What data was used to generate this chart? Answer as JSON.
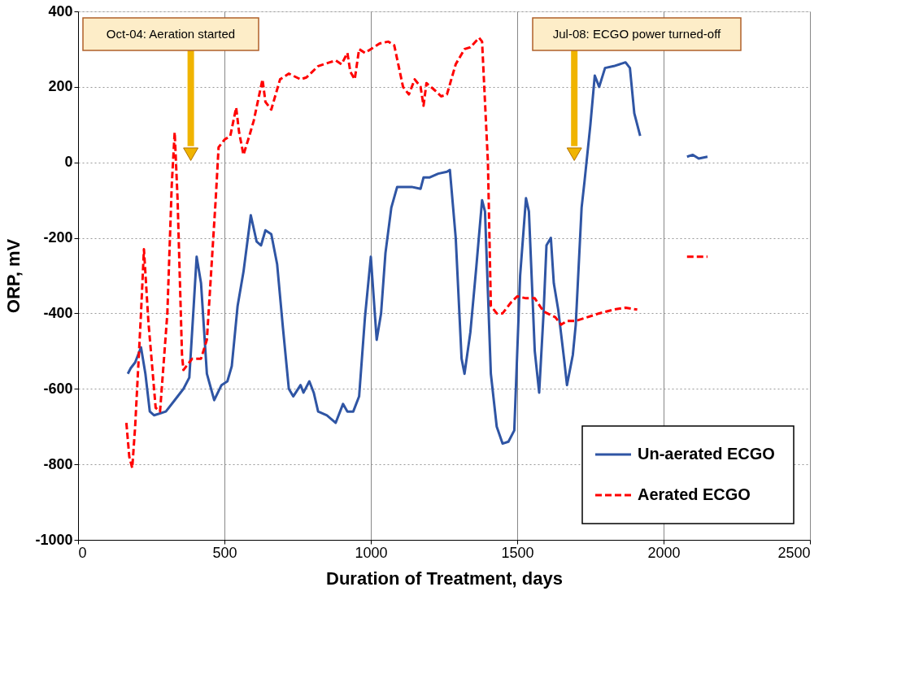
{
  "chart_data": {
    "type": "line",
    "xlabel": "Duration of Treatment, days",
    "ylabel": "ORP, mV",
    "xlim": [
      0,
      2500
    ],
    "xticks": [
      0,
      500,
      1000,
      1500,
      2000,
      2500
    ],
    "ylim": [
      -1000,
      400
    ],
    "yticks": [
      -1000,
      -800,
      -600,
      -400,
      -200,
      0,
      200,
      400
    ],
    "grid": true,
    "legend": "bottom right",
    "ref_lines": [
      {
        "axis": "x",
        "value": 385,
        "label": "Oct-04: Aeration started",
        "color": "#f0b400"
      },
      {
        "axis": "x",
        "value": 1695,
        "label": "Jul-08: ECGO power turned-off",
        "color": "#f0b400"
      }
    ],
    "series": [
      {
        "name": "Un-aerated ECGO",
        "color": "#2f55a4",
        "line_style": "solid",
        "x": [
          170,
          180,
          195,
          215,
          230,
          245,
          260,
          300,
          330,
          360,
          380,
          395,
          405,
          420,
          440,
          465,
          490,
          510,
          525,
          545,
          565,
          590,
          610,
          625,
          640,
          660,
          680,
          700,
          720,
          735,
          760,
          770,
          790,
          805,
          820,
          850,
          880,
          905,
          920,
          940,
          960,
          980,
          1000,
          1020,
          1035,
          1050,
          1070,
          1090,
          1140,
          1170,
          1180,
          1200,
          1230,
          1260,
          1270,
          1290,
          1310,
          1320,
          1340,
          1360,
          1380,
          1390,
          1410,
          1430,
          1450,
          1470,
          1490,
          1510,
          1530,
          1540,
          1560,
          1575,
          1590,
          1600,
          1615,
          1625,
          1640,
          1660,
          1670,
          1690,
          1700,
          1720,
          1730,
          1750,
          1765,
          1780,
          1800,
          1830,
          1870,
          1885,
          1900,
          1920,
          2000,
          2080,
          2100,
          2120,
          2150
        ],
        "values": [
          -560,
          -545,
          -530,
          -490,
          -560,
          -660,
          -670,
          -660,
          -630,
          -600,
          -570,
          -380,
          -250,
          -320,
          -560,
          -630,
          -590,
          -580,
          -540,
          -380,
          -290,
          -140,
          -210,
          -220,
          -180,
          -190,
          -270,
          -440,
          -600,
          -620,
          -590,
          -610,
          -580,
          -610,
          -660,
          -670,
          -690,
          -640,
          -660,
          -660,
          -620,
          -410,
          -250,
          -470,
          -400,
          -240,
          -120,
          -65,
          -65,
          -70,
          -40,
          -40,
          -30,
          -25,
          -20,
          -200,
          -520,
          -560,
          -450,
          -280,
          -100,
          -130,
          -560,
          -700,
          -745,
          -740,
          -710,
          -300,
          -95,
          -130,
          -500,
          -610,
          -400,
          -220,
          -200,
          -320,
          -390,
          -520,
          -590,
          -510,
          -430,
          -120,
          -50,
          100,
          230,
          200,
          250,
          255,
          265,
          250,
          130,
          70,
          null,
          15,
          20,
          10,
          15
        ]
      },
      {
        "name": "Aerated ECGO",
        "color": "#ff0000",
        "line_style": "dashed",
        "x": [
          165,
          175,
          185,
          195,
          215,
          225,
          240,
          265,
          280,
          305,
          320,
          330,
          340,
          355,
          360,
          390,
          420,
          440,
          470,
          480,
          500,
          520,
          540,
          550,
          565,
          585,
          600,
          630,
          640,
          660,
          690,
          720,
          760,
          780,
          820,
          860,
          880,
          900,
          920,
          930,
          945,
          960,
          980,
          1000,
          1030,
          1060,
          1080,
          1110,
          1130,
          1150,
          1170,
          1180,
          1190,
          1220,
          1240,
          1260,
          1290,
          1320,
          1340,
          1370,
          1380,
          1400,
          1410,
          1430,
          1450,
          1480,
          1500,
          1530,
          1560,
          1590,
          1630,
          1650,
          1670,
          1700,
          1740,
          1780,
          1830,
          1870,
          1910,
          2000,
          2080,
          2150
        ],
        "values": [
          -690,
          -780,
          -810,
          -700,
          -400,
          -230,
          -420,
          -650,
          -660,
          -400,
          -60,
          80,
          -100,
          -510,
          -550,
          -520,
          -520,
          -470,
          -100,
          40,
          60,
          70,
          145,
          80,
          20,
          70,
          110,
          220,
          160,
          140,
          220,
          235,
          220,
          225,
          255,
          265,
          270,
          260,
          290,
          240,
          220,
          300,
          290,
          300,
          315,
          320,
          310,
          200,
          180,
          220,
          200,
          150,
          210,
          190,
          175,
          180,
          260,
          300,
          305,
          330,
          320,
          0,
          -380,
          -400,
          -400,
          -370,
          -355,
          -360,
          -360,
          -395,
          -410,
          -430,
          -420,
          -420,
          -410,
          -400,
          -390,
          -385,
          -390,
          null,
          -250,
          -250
        ]
      }
    ]
  }
}
